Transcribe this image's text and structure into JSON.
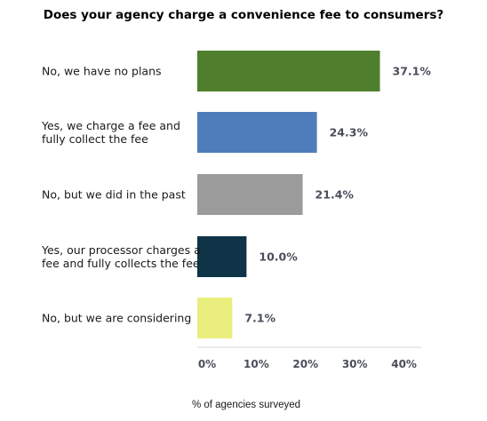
{
  "chart_data": {
    "type": "bar",
    "orientation": "horizontal",
    "title": "Does your agency charge a convenience fee to consumers?",
    "xlabel": "% of agencies surveyed",
    "ylabel": "",
    "xlim": [
      0,
      45
    ],
    "grid": false,
    "legend": "none",
    "categories": [
      [
        "No, we have no plans"
      ],
      [
        "Yes, we charge a fee and",
        "fully collect the fee"
      ],
      [
        "No, but we did in the past"
      ],
      [
        "Yes, our processor charges a",
        "fee and fully collects the fee"
      ],
      [
        "No, but we are considering"
      ]
    ],
    "values": [
      37.1,
      24.3,
      21.4,
      10.0,
      7.1
    ],
    "value_labels": [
      "37.1%",
      "24.3%",
      "21.4%",
      "10.0%",
      "7.1%"
    ],
    "colors": [
      "#4f7f2c",
      "#4f7cba",
      "#9b9b9b",
      "#0f3347",
      "#e9ee7c"
    ],
    "ticks": [
      0,
      10,
      20,
      30,
      40
    ],
    "tick_labels": [
      "0%",
      "10%",
      "20%",
      "30%",
      "40%"
    ]
  }
}
